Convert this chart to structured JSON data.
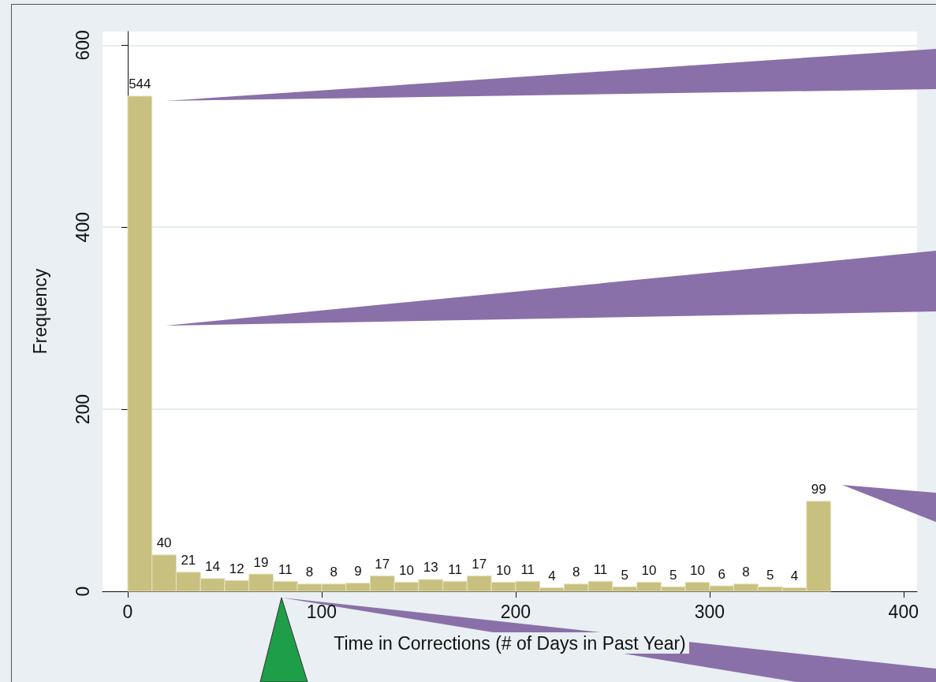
{
  "chart_data": {
    "type": "histogram",
    "xlabel": "Time in Corrections (# of Days in Past Year)",
    "ylabel": "Frequency",
    "bins": [
      0,
      12.5,
      25,
      37.5,
      50,
      62.5,
      75,
      87.5,
      100,
      112.5,
      125,
      137.5,
      150,
      162.5,
      175,
      187.5,
      200,
      212.5,
      225,
      237.5,
      250,
      262.5,
      275,
      287.5,
      300,
      312.5,
      325,
      337.5,
      350,
      362.5
    ],
    "values": [
      544,
      40,
      21,
      14,
      12,
      19,
      11,
      8,
      8,
      9,
      17,
      10,
      13,
      11,
      17,
      10,
      11,
      4,
      8,
      11,
      5,
      10,
      5,
      10,
      6,
      8,
      5,
      4,
      99
    ],
    "color": "#c8c07e",
    "data_labels": true,
    "xlim": [
      -13,
      407
    ],
    "xticks": [
      0,
      100,
      200,
      300,
      400
    ],
    "ylim": [
      0,
      615
    ],
    "yticks": [
      0,
      200,
      400,
      600
    ],
    "grid": "y"
  }
}
